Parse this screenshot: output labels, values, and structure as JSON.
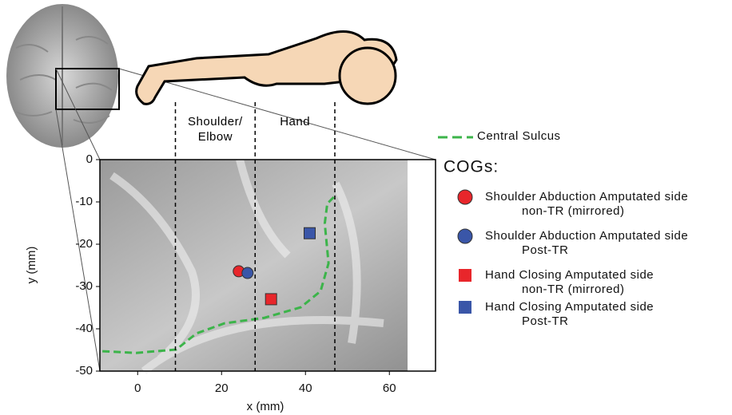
{
  "chart_data": {
    "type": "scatter",
    "xlabel": "x (mm)",
    "ylabel": "y (mm)",
    "xlim": [
      -9,
      71
    ],
    "ylim": [
      -50,
      0
    ],
    "xticks": [
      0,
      20,
      40,
      60
    ],
    "yticks": [
      0,
      -10,
      -20,
      -30,
      -40,
      -50
    ],
    "regions": [
      {
        "label": "Shoulder/\nElbow",
        "from": 9,
        "to": 28
      },
      {
        "label": "Hand",
        "from": 28,
        "to": 47
      }
    ],
    "legend_title": "COGs:",
    "series": [
      {
        "name": "Central Sulcus",
        "kind": "line",
        "color": "#3cb44a",
        "x": [
          -8.4,
          -0.4,
          9.2,
          14,
          20.7,
          30.2,
          38.9,
          43.6,
          45.5,
          44.6,
          45.2,
          47.1
        ],
        "values": [
          -45.3,
          -45.7,
          -44.9,
          -41.1,
          -38.7,
          -37.4,
          -34.9,
          -31.1,
          -24.5,
          -15.1,
          -10.4,
          -8.5
        ]
      },
      {
        "name": "Shoulder Abduction Amputated side\nnon-TR (mirrored)",
        "kind": "point",
        "marker": "circle",
        "color": "#e8262b",
        "x": [
          24.1
        ],
        "values": [
          -26.4
        ]
      },
      {
        "name": "Shoulder Abduction Amputated side\nPost-TR",
        "kind": "point",
        "marker": "circle",
        "color": "#3a56a8",
        "x": [
          26.2
        ],
        "values": [
          -26.8
        ]
      },
      {
        "name": "Hand Closing Amputated side\nnon-TR (mirrored)",
        "kind": "point",
        "marker": "square",
        "color": "#e8262b",
        "x": [
          31.8
        ],
        "values": [
          -33
        ]
      },
      {
        "name": "Hand Closing Amputated side\nPost-TR",
        "kind": "point",
        "marker": "square",
        "color": "#3a56a8",
        "x": [
          41
        ],
        "values": [
          -17.4
        ]
      }
    ]
  }
}
